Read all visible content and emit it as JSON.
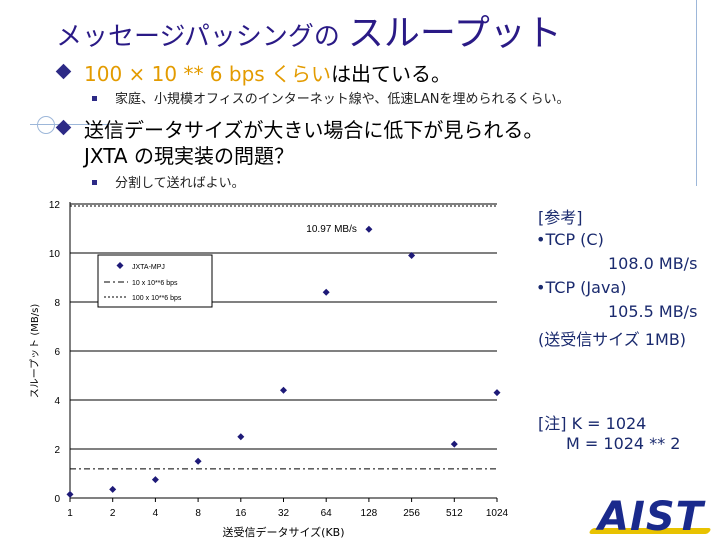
{
  "title": {
    "part1": "メッセージパッシングの",
    "part2": "スループット"
  },
  "bullets": [
    {
      "highlight": "100 × 10 ** 6 bps くらい",
      "rest": "は出ている。",
      "sub": "家庭、小規模オフィスのインターネット線や、低速LANを埋められるくらい。"
    },
    {
      "line1": "送信データサイズが大きい場合に低下が見られる。",
      "line2": "JXTA の現実装の問題？",
      "sub": "分割して送ればよい。"
    }
  ],
  "notes": {
    "ref_title": "[参考]",
    "tcp_c_label": "•TCP (C)",
    "tcp_c_value": "108.0 MB/s",
    "tcp_java_label": "•TCP (Java)",
    "tcp_java_value": "105.5 MB/s",
    "size_note": "(送受信サイズ 1MB)",
    "note1": "[注] K = 1024",
    "note2": "M = 1024 ** 2"
  },
  "logo": "AIST",
  "chart_data": {
    "type": "scatter",
    "x_label": "送受信データサイズ(KB)",
    "y_label": "スループット (MB/s)",
    "x_categories": [
      "1",
      "2",
      "4",
      "8",
      "16",
      "32",
      "64",
      "128",
      "256",
      "512",
      "1024"
    ],
    "ylim": [
      0,
      12
    ],
    "y_ticks": [
      0,
      2,
      4,
      6,
      8,
      10,
      12
    ],
    "series": [
      {
        "name": "JXTA-MPJ",
        "values": [
          0.15,
          0.35,
          0.75,
          1.5,
          2.5,
          4.4,
          8.4,
          10.97,
          9.9,
          2.2,
          4.3
        ]
      }
    ],
    "reference_lines": [
      {
        "name": "10 x 10**6 bps",
        "value": 1.19
      },
      {
        "name": "100 x 10**6 bps",
        "value": 11.92
      }
    ],
    "annotation": "10.97 MB/s",
    "grid": "horizontal"
  }
}
